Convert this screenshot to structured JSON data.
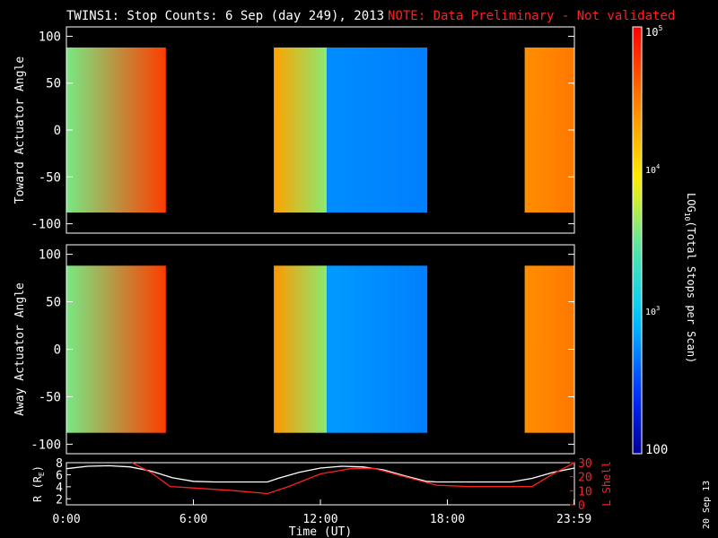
{
  "header": {
    "title": "TWINS1: Stop Counts:  6 Sep (day 249), 2013",
    "note": "NOTE: Data Preliminary - Not validated"
  },
  "side_date": "20 Sep 13",
  "colors": {
    "note": "#ff2020",
    "lshell": "#ff2020",
    "radius": "#ffffff",
    "background": "#000000"
  },
  "colorbar": {
    "label": "LOG10(Total Stops per Scan)",
    "label_prefix": "LOG",
    "label_sub": "10",
    "label_suffix": "(Total Stops per Scan)",
    "range": [
      100,
      100000
    ],
    "scale": "log",
    "tick_100": "100",
    "tick_1e3_base": "10",
    "tick_1e3_exp": "3",
    "tick_1e4_base": "10",
    "tick_1e4_exp": "4",
    "tick_1e5_base": "10",
    "tick_1e5_exp": "5"
  },
  "chart_data": [
    {
      "type": "heatmap",
      "name": "toward",
      "ylabel": "Toward Actuator Angle",
      "ylim": [
        -110,
        110
      ],
      "yticks": [
        "100",
        "50",
        "0",
        "-50",
        "-100"
      ],
      "ytick_values": [
        100,
        50,
        0,
        -50,
        -100
      ],
      "angle_range": [
        -88,
        88
      ],
      "xlim_hours": [
        0,
        24
      ],
      "time_segments": [
        {
          "start_hour": 0.0,
          "end_hour": 4.7,
          "log_counts_start": 3.55,
          "log_counts_end": 4.75
        },
        {
          "start_hour": 9.8,
          "end_hour": 12.3,
          "log_counts_start": 4.3,
          "log_counts_end": 3.6
        },
        {
          "start_hour": 12.3,
          "end_hour": 17.05,
          "log_counts_start": 2.75,
          "log_counts_end": 2.7
        },
        {
          "start_hour": 21.65,
          "end_hour": 24.0,
          "log_counts_start": 4.4,
          "log_counts_end": 4.5
        }
      ]
    },
    {
      "type": "heatmap",
      "name": "away",
      "ylabel": "Away Actuator Angle",
      "ylim": [
        -110,
        110
      ],
      "yticks": [
        "100",
        "50",
        "0",
        "-50",
        "-100"
      ],
      "ytick_values": [
        100,
        50,
        0,
        -50,
        -100
      ],
      "angle_range": [
        -88,
        88
      ],
      "xlim_hours": [
        0,
        24
      ],
      "time_segments": [
        {
          "start_hour": 0.0,
          "end_hour": 4.7,
          "log_counts_start": 3.55,
          "log_counts_end": 4.75
        },
        {
          "start_hour": 9.8,
          "end_hour": 12.3,
          "log_counts_start": 4.35,
          "log_counts_end": 3.6
        },
        {
          "start_hour": 12.3,
          "end_hour": 17.05,
          "log_counts_start": 2.8,
          "log_counts_end": 2.7
        },
        {
          "start_hour": 21.65,
          "end_hour": 24.0,
          "log_counts_start": 4.4,
          "log_counts_end": 4.5
        }
      ]
    },
    {
      "type": "line",
      "name": "orbit",
      "ylabel_left": "R (RE)",
      "ylabel_left_prefix": "R (R",
      "ylabel_left_sub": "E",
      "ylabel_left_suffix": ")",
      "ylabel_right": "L Shell",
      "ylim_left": [
        1,
        8
      ],
      "yticks_left": [
        "8",
        "6",
        "4",
        "2"
      ],
      "ytick_left_values": [
        8,
        6,
        4,
        2
      ],
      "ylim_right": [
        0,
        30
      ],
      "yticks_right": [
        "30",
        "20",
        "10",
        "0"
      ],
      "ytick_right_values": [
        30,
        20,
        10,
        0
      ],
      "xlim_hours": [
        0,
        24
      ],
      "xlabel": "Time (UT)",
      "xticks": [
        "0:00",
        "6:00",
        "12:00",
        "18:00",
        "23:59"
      ],
      "xtick_values": [
        0,
        6,
        12,
        18,
        23.983
      ],
      "series": [
        {
          "name": "R",
          "axis": "left",
          "x": [
            0,
            1,
            2,
            3,
            4,
            5,
            6,
            7,
            8,
            9,
            9.5,
            10,
            11,
            12,
            13,
            14,
            15,
            16,
            17,
            17.5,
            18,
            19,
            20,
            21,
            22,
            23,
            24
          ],
          "y": [
            7.0,
            7.4,
            7.5,
            7.3,
            6.6,
            5.5,
            4.9,
            4.8,
            4.8,
            4.8,
            4.8,
            5.4,
            6.4,
            7.1,
            7.4,
            7.3,
            6.8,
            5.8,
            4.9,
            4.8,
            4.8,
            4.8,
            4.8,
            4.8,
            5.4,
            6.4,
            7.1
          ]
        },
        {
          "name": "L Shell",
          "axis": "right",
          "x": [
            3.1,
            4.0,
            4.9,
            6.0,
            8.0,
            9.5,
            10.5,
            12.0,
            13.5,
            14.5,
            15.5,
            17.5,
            19.0,
            21.0,
            22.0,
            23.0,
            24.0
          ],
          "y": [
            30,
            23,
            13,
            12,
            10,
            8,
            13,
            22,
            26,
            26,
            22,
            14,
            13,
            13,
            13,
            22,
            30
          ]
        }
      ]
    }
  ]
}
